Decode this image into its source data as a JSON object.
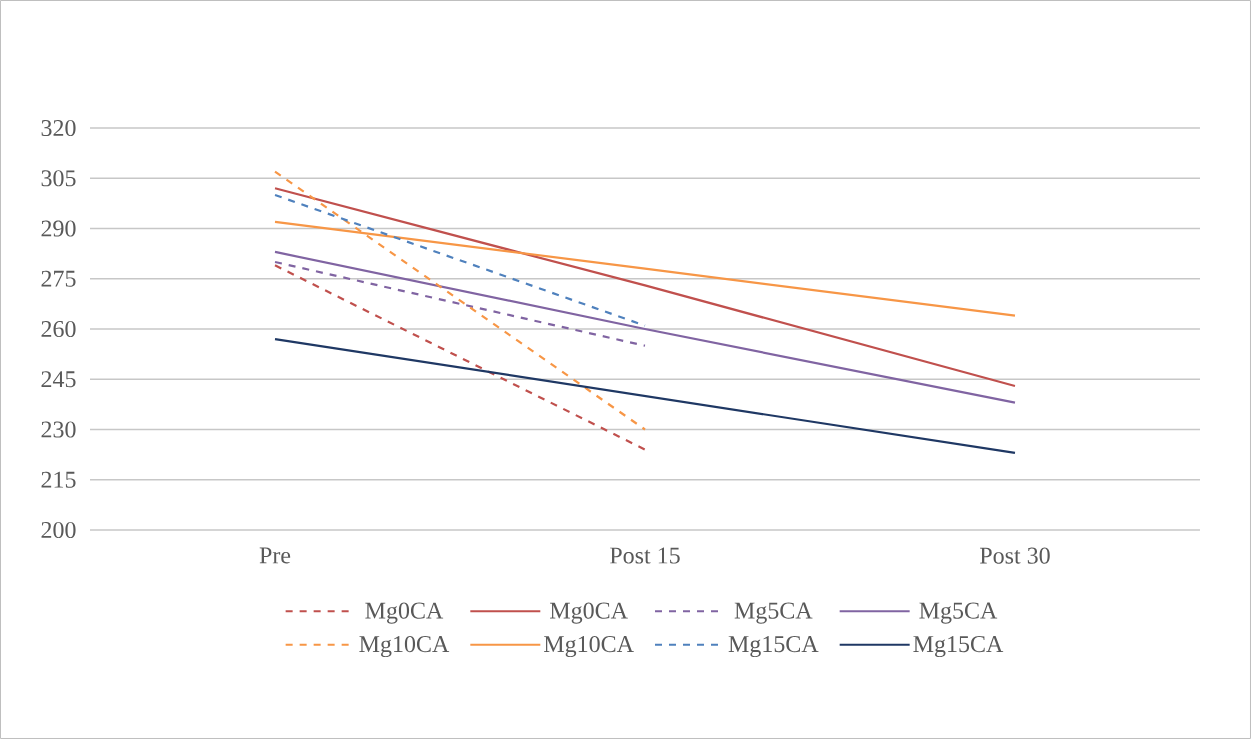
{
  "chart_data": {
    "type": "line",
    "categories": [
      "Pre",
      "Post 15",
      "Post 30"
    ],
    "series": [
      {
        "name": "Mg0CA",
        "color": "#c0504d",
        "line_style": "dashed",
        "values": [
          279,
          224,
          null
        ]
      },
      {
        "name": "Mg0CA",
        "color": "#c0504d",
        "line_style": "solid",
        "values": [
          302,
          273,
          243
        ]
      },
      {
        "name": "Mg5CA",
        "color": "#8064a2",
        "line_style": "dashed",
        "values": [
          280,
          255,
          null
        ]
      },
      {
        "name": "Mg5CA",
        "color": "#8064a2",
        "line_style": "solid",
        "values": [
          283,
          260,
          238
        ]
      },
      {
        "name": "Mg10CA",
        "color": "#f79646",
        "line_style": "dashed",
        "values": [
          307,
          230,
          null
        ]
      },
      {
        "name": "Mg10CA",
        "color": "#f79646",
        "line_style": "solid",
        "values": [
          292,
          278,
          264
        ]
      },
      {
        "name": "Mg15CA",
        "color": "#4f81bd",
        "line_style": "dashed",
        "values": [
          300,
          261,
          null
        ]
      },
      {
        "name": "Mg15CA",
        "color": "#1f3864",
        "line_style": "solid",
        "values": [
          257,
          240,
          223
        ]
      }
    ],
    "ylim": [
      200,
      320
    ],
    "yticks": [
      200,
      215,
      230,
      245,
      260,
      275,
      290,
      305,
      320
    ],
    "grid": "y",
    "legend": "bottom",
    "marker": "none"
  }
}
